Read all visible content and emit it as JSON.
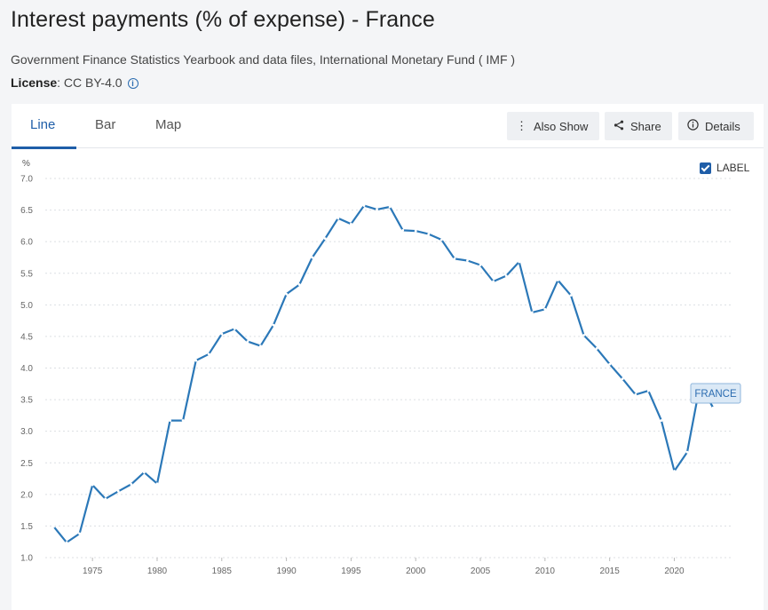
{
  "page": {
    "title": "Interest payments (% of expense) - France",
    "source": "Government Finance Statistics Yearbook and data files, International Monetary Fund ( IMF )",
    "license_label": "License",
    "license_value": ": CC BY-4.0"
  },
  "tabs": [
    {
      "label": "Line",
      "active": true
    },
    {
      "label": "Bar",
      "active": false
    },
    {
      "label": "Map",
      "active": false
    }
  ],
  "toolbar": {
    "also_show": "Also Show",
    "share": "Share",
    "details": "Details"
  },
  "label_toggle": {
    "text": "LABEL",
    "checked": true
  },
  "colors": {
    "line": "#2b78b8",
    "accent": "#1f5ea8"
  },
  "chart_data": {
    "type": "line",
    "ylabel": "%",
    "xlabel": "",
    "ylim": [
      1.0,
      7.0
    ],
    "yticks": [
      "7.0",
      "6.5",
      "6.0",
      "5.5",
      "5.0",
      "4.5",
      "4.0",
      "3.5",
      "3.0",
      "2.5",
      "2.0",
      "1.5",
      "1.0"
    ],
    "xlim": [
      1970.8,
      2024.5
    ],
    "xticks": [
      "1975",
      "1980",
      "1985",
      "1990",
      "1995",
      "2000",
      "2005",
      "2010",
      "2015",
      "2020"
    ],
    "grid": true,
    "series": [
      {
        "name": "FRANCE",
        "x": [
          1972,
          1973,
          1974,
          1975,
          1976,
          1977,
          1978,
          1979,
          1980,
          1981,
          1982,
          1983,
          1984,
          1985,
          1986,
          1987,
          1988,
          1989,
          1990,
          1991,
          1992,
          1993,
          1994,
          1995,
          1996,
          1997,
          1998,
          1999,
          2000,
          2001,
          2002,
          2003,
          2004,
          2005,
          2006,
          2007,
          2008,
          2009,
          2010,
          2011,
          2012,
          2013,
          2014,
          2015,
          2016,
          2017,
          2018,
          2019,
          2020,
          2021,
          2022,
          2023
        ],
        "y": [
          1.49,
          1.24,
          1.38,
          2.15,
          1.93,
          2.05,
          2.16,
          2.35,
          2.17,
          3.17,
          3.17,
          4.12,
          4.22,
          4.54,
          4.62,
          4.42,
          4.35,
          4.68,
          5.17,
          5.32,
          5.75,
          6.05,
          6.37,
          6.28,
          6.57,
          6.51,
          6.55,
          6.18,
          6.17,
          6.12,
          6.03,
          5.73,
          5.7,
          5.63,
          5.37,
          5.46,
          5.68,
          4.88,
          4.93,
          5.39,
          5.15,
          4.52,
          4.31,
          4.06,
          3.83,
          3.58,
          3.64,
          3.17,
          2.37,
          2.67,
          3.75,
          3.37
        ]
      }
    ]
  }
}
